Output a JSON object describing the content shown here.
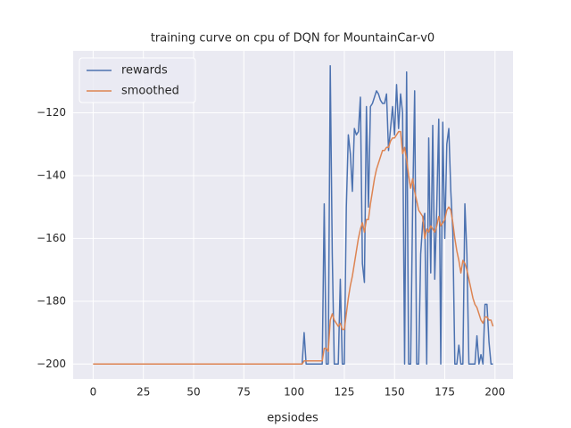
{
  "chart_data": {
    "type": "line",
    "title": "training curve on cpu of DQN for MountainCar-v0",
    "x_label": "epsiodes",
    "x": [
      0,
      1,
      2,
      3,
      4,
      5,
      6,
      7,
      8,
      9,
      10,
      11,
      12,
      13,
      14,
      15,
      16,
      17,
      18,
      19,
      20,
      21,
      22,
      23,
      24,
      25,
      26,
      27,
      28,
      29,
      30,
      31,
      32,
      33,
      34,
      35,
      36,
      37,
      38,
      39,
      40,
      41,
      42,
      43,
      44,
      45,
      46,
      47,
      48,
      49,
      50,
      51,
      52,
      53,
      54,
      55,
      56,
      57,
      58,
      59,
      60,
      61,
      62,
      63,
      64,
      65,
      66,
      67,
      68,
      69,
      70,
      71,
      72,
      73,
      74,
      75,
      76,
      77,
      78,
      79,
      80,
      81,
      82,
      83,
      84,
      85,
      86,
      87,
      88,
      89,
      90,
      91,
      92,
      93,
      94,
      95,
      96,
      97,
      98,
      99,
      100,
      101,
      102,
      103,
      104,
      105,
      106,
      107,
      108,
      109,
      110,
      111,
      112,
      113,
      114,
      115,
      116,
      117,
      118,
      119,
      120,
      121,
      122,
      123,
      124,
      125,
      126,
      127,
      128,
      129,
      130,
      131,
      132,
      133,
      134,
      135,
      136,
      137,
      138,
      139,
      140,
      141,
      142,
      143,
      144,
      145,
      146,
      147,
      148,
      149,
      150,
      151,
      152,
      153,
      154,
      155,
      156,
      157,
      158,
      159,
      160,
      161,
      162,
      163,
      164,
      165,
      166,
      167,
      168,
      169,
      170,
      171,
      172,
      173,
      174,
      175,
      176,
      177,
      178,
      179,
      180,
      181,
      182,
      183,
      184,
      185,
      186,
      187,
      188,
      189,
      190,
      191,
      192,
      193,
      194,
      195,
      196,
      197,
      198,
      199
    ],
    "series": [
      {
        "name": "rewards",
        "color": "#4c72b0",
        "values": [
          -200,
          -200,
          -200,
          -200,
          -200,
          -200,
          -200,
          -200,
          -200,
          -200,
          -200,
          -200,
          -200,
          -200,
          -200,
          -200,
          -200,
          -200,
          -200,
          -200,
          -200,
          -200,
          -200,
          -200,
          -200,
          -200,
          -200,
          -200,
          -200,
          -200,
          -200,
          -200,
          -200,
          -200,
          -200,
          -200,
          -200,
          -200,
          -200,
          -200,
          -200,
          -200,
          -200,
          -200,
          -200,
          -200,
          -200,
          -200,
          -200,
          -200,
          -200,
          -200,
          -200,
          -200,
          -200,
          -200,
          -200,
          -200,
          -200,
          -200,
          -200,
          -200,
          -200,
          -200,
          -200,
          -200,
          -200,
          -200,
          -200,
          -200,
          -200,
          -200,
          -200,
          -200,
          -200,
          -200,
          -200,
          -200,
          -200,
          -200,
          -200,
          -200,
          -200,
          -200,
          -200,
          -200,
          -200,
          -200,
          -200,
          -200,
          -200,
          -200,
          -200,
          -200,
          -200,
          -200,
          -200,
          -200,
          -200,
          -200,
          -200,
          -200,
          -200,
          -200,
          -200,
          -190,
          -200,
          -200,
          -200,
          -200,
          -200,
          -200,
          -200,
          -200,
          -200,
          -149,
          -200,
          -200,
          -105,
          -165,
          -200,
          -200,
          -200,
          -173,
          -200,
          -200,
          -150,
          -127,
          -133,
          -145,
          -125,
          -127,
          -126,
          -115,
          -168,
          -174,
          -118,
          -150,
          -118,
          -117,
          -115,
          -113,
          -114,
          -116,
          -117,
          -117,
          -114,
          -132,
          -125,
          -118,
          -127,
          -111,
          -125,
          -114,
          -120,
          -200,
          -107,
          -200,
          -200,
          -150,
          -113,
          -200,
          -200,
          -165,
          -155,
          -152,
          -200,
          -128,
          -171,
          -124,
          -173,
          -150,
          -122,
          -200,
          -123,
          -160,
          -130,
          -125,
          -145,
          -158,
          -200,
          -200,
          -194,
          -200,
          -200,
          -149,
          -165,
          -200,
          -200,
          -200,
          -200,
          -191,
          -200,
          -197,
          -200,
          -181,
          -181,
          -193,
          -200,
          -200
        ]
      },
      {
        "name": "smoothed",
        "color": "#dd8452",
        "values": [
          -200,
          -200,
          -200,
          -200,
          -200,
          -200,
          -200,
          -200,
          -200,
          -200,
          -200,
          -200,
          -200,
          -200,
          -200,
          -200,
          -200,
          -200,
          -200,
          -200,
          -200,
          -200,
          -200,
          -200,
          -200,
          -200,
          -200,
          -200,
          -200,
          -200,
          -200,
          -200,
          -200,
          -200,
          -200,
          -200,
          -200,
          -200,
          -200,
          -200,
          -200,
          -200,
          -200,
          -200,
          -200,
          -200,
          -200,
          -200,
          -200,
          -200,
          -200,
          -200,
          -200,
          -200,
          -200,
          -200,
          -200,
          -200,
          -200,
          -200,
          -200,
          -200,
          -200,
          -200,
          -200,
          -200,
          -200,
          -200,
          -200,
          -200,
          -200,
          -200,
          -200,
          -200,
          -200,
          -200,
          -200,
          -200,
          -200,
          -200,
          -200,
          -200,
          -200,
          -200,
          -200,
          -200,
          -200,
          -200,
          -200,
          -200,
          -200,
          -200,
          -200,
          -200,
          -200,
          -200,
          -200,
          -200,
          -200,
          -200,
          -200,
          -200,
          -200,
          -200,
          -200,
          -199,
          -199,
          -199,
          -199,
          -199,
          -199,
          -199,
          -199,
          -199,
          -199,
          -195,
          -195,
          -196,
          -186,
          -184,
          -186,
          -187,
          -188,
          -187,
          -189,
          -189,
          -184,
          -179,
          -175,
          -172,
          -168,
          -164,
          -160,
          -157,
          -155,
          -158,
          -154,
          -154,
          -149,
          -145,
          -141,
          -138,
          -136,
          -134,
          -132,
          -132,
          -131,
          -131,
          -129,
          -128,
          -128,
          -127,
          -126,
          -126,
          -133,
          -131,
          -135,
          -140,
          -144,
          -141,
          -145,
          -148,
          -151,
          -152,
          -153,
          -160,
          -157,
          -158,
          -156,
          -157,
          -158,
          -156,
          -153,
          -156,
          -155,
          -154,
          -151,
          -150,
          -151,
          -155,
          -160,
          -164,
          -167,
          -171,
          -167,
          -168,
          -170,
          -173,
          -176,
          -179,
          -181,
          -182,
          -184,
          -186,
          -187,
          -185,
          -185,
          -186,
          -186,
          -188
        ]
      }
    ],
    "xlim": [
      -9.95,
      208.95
    ],
    "ylim": [
      -204.75,
      -100.25
    ],
    "xticks": [
      0,
      25,
      50,
      75,
      100,
      125,
      150,
      175,
      200
    ],
    "yticks": [
      {
        "value": -200,
        "label": "−200"
      },
      {
        "value": -180,
        "label": "−180"
      },
      {
        "value": -160,
        "label": "−160"
      },
      {
        "value": -140,
        "label": "−140"
      },
      {
        "value": -120,
        "label": "−120"
      }
    ],
    "grid": true,
    "legend": "upper left"
  }
}
